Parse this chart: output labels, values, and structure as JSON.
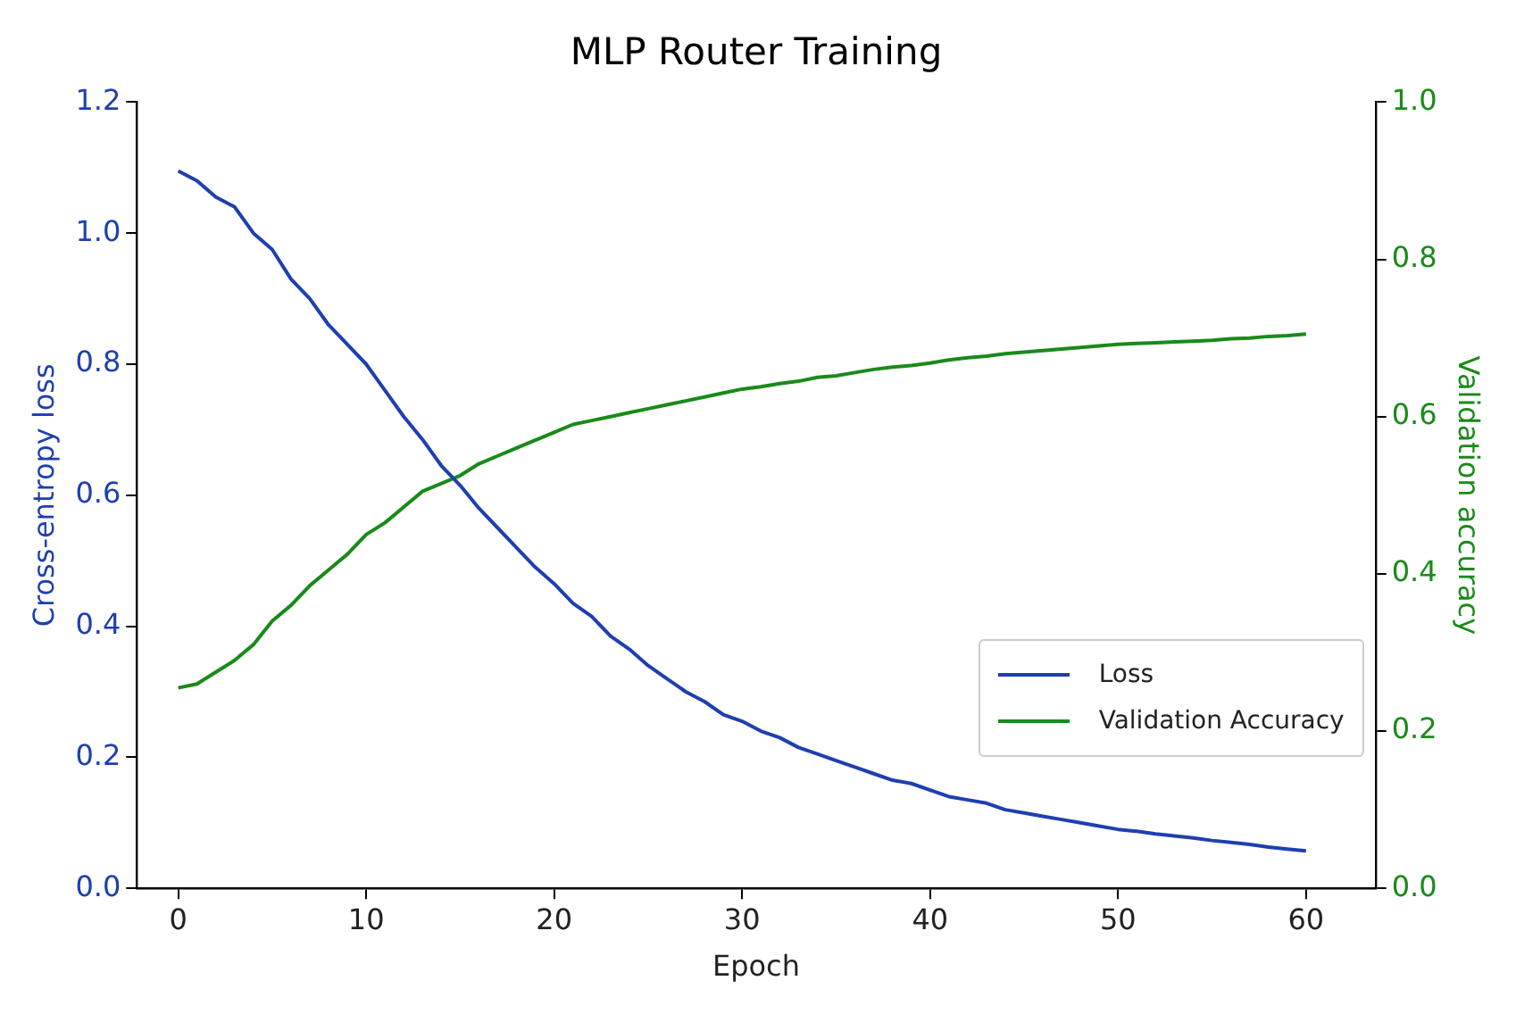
{
  "chart_data": {
    "type": "line",
    "title": "MLP Router Training",
    "xlabel": "Epoch",
    "ylabel": "Cross-entropy loss",
    "y2label": "Validation accuracy",
    "x": [
      0,
      1,
      2,
      3,
      4,
      5,
      6,
      7,
      8,
      9,
      10,
      11,
      12,
      13,
      14,
      15,
      16,
      17,
      18,
      19,
      20,
      21,
      22,
      23,
      24,
      25,
      26,
      27,
      28,
      29,
      30,
      31,
      32,
      33,
      34,
      35,
      36,
      37,
      38,
      39,
      40,
      41,
      42,
      43,
      44,
      45,
      46,
      47,
      48,
      49,
      50,
      51,
      52,
      53,
      54,
      55,
      56,
      57,
      58,
      59,
      60
    ],
    "series": [
      {
        "name": "Loss",
        "color": "#1f3fb0",
        "values": [
          1.095,
          1.08,
          1.055,
          1.04,
          1.0,
          0.975,
          0.93,
          0.9,
          0.86,
          0.83,
          0.8,
          0.76,
          0.72,
          0.685,
          0.645,
          0.615,
          0.58,
          0.55,
          0.52,
          0.49,
          0.465,
          0.435,
          0.415,
          0.385,
          0.365,
          0.34,
          0.32,
          0.3,
          0.285,
          0.265,
          0.255,
          0.24,
          0.23,
          0.215,
          0.205,
          0.195,
          0.185,
          0.175,
          0.165,
          0.16,
          0.15,
          0.14,
          0.135,
          0.13,
          0.12,
          0.115,
          0.11,
          0.105,
          0.1,
          0.095,
          0.09,
          0.087,
          0.083,
          0.08,
          0.077,
          0.073,
          0.07,
          0.067,
          0.063,
          0.06,
          0.057
        ]
      },
      {
        "name": "Validation Accuracy",
        "color": "#1a8a1a",
        "axis": "y2",
        "values": [
          0.255,
          0.26,
          0.275,
          0.29,
          0.31,
          0.34,
          0.36,
          0.385,
          0.405,
          0.425,
          0.45,
          0.465,
          0.485,
          0.505,
          0.515,
          0.525,
          0.54,
          0.55,
          0.56,
          0.57,
          0.58,
          0.59,
          0.595,
          0.6,
          0.605,
          0.61,
          0.615,
          0.62,
          0.625,
          0.63,
          0.635,
          0.638,
          0.642,
          0.645,
          0.65,
          0.652,
          0.656,
          0.66,
          0.663,
          0.665,
          0.668,
          0.672,
          0.675,
          0.677,
          0.68,
          0.682,
          0.684,
          0.686,
          0.688,
          0.69,
          0.692,
          0.693,
          0.694,
          0.695,
          0.696,
          0.697,
          0.699,
          0.7,
          0.702,
          0.703,
          0.705
        ]
      }
    ],
    "xlim": [
      -2.2,
      63.7
    ],
    "xticks": [
      0,
      10,
      20,
      30,
      40,
      50,
      60
    ],
    "ylim": [
      0,
      1.2
    ],
    "yticks": [
      {
        "value": 0,
        "label": "0.0"
      },
      0.2,
      0.4,
      0.6,
      0.8,
      {
        "value": 1,
        "label": "1.0"
      },
      1.2
    ],
    "y2lim": [
      0,
      1
    ],
    "y2ticks": [
      {
        "value": 0,
        "label": "0.0"
      },
      0.2,
      0.4,
      0.6,
      0.8,
      {
        "value": 1,
        "label": "1.0"
      }
    ],
    "grid": false,
    "legend": "bottom right",
    "marker": "none",
    "line_style": "solid"
  }
}
